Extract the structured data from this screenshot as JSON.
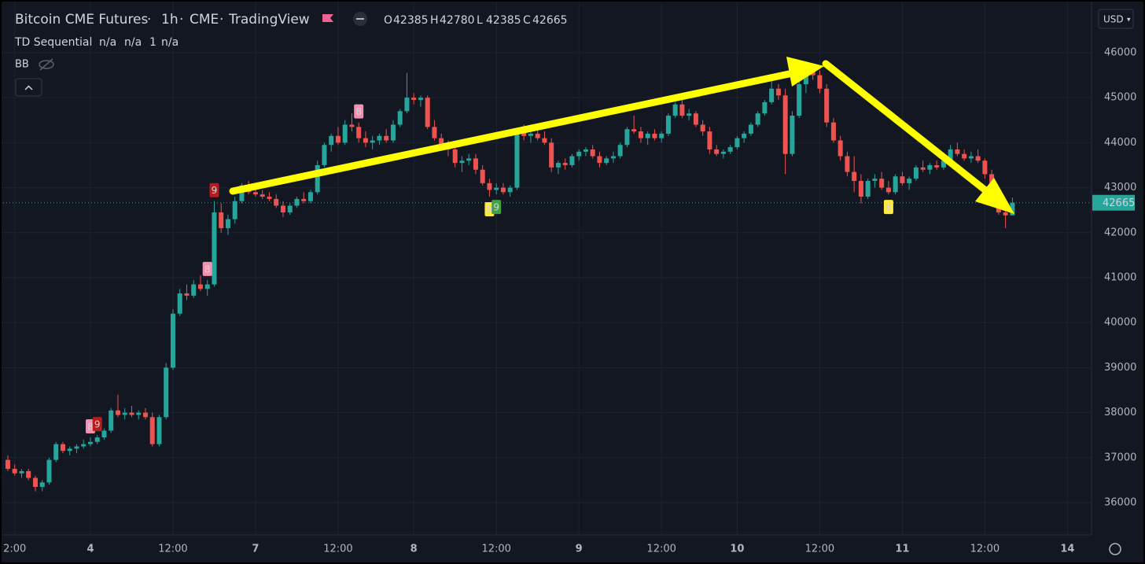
{
  "chart_data": {
    "type": "candlestick",
    "title": "Bitcoin CME Futures",
    "interval": "1h",
    "exchange": "CME",
    "source": "TradingView",
    "ohlc_legend": [
      {
        "label": "O",
        "value": 42385
      },
      {
        "label": "H",
        "value": 42780
      },
      {
        "label": "L",
        "value": 42385
      },
      {
        "label": "C",
        "value": 42665
      }
    ],
    "indicator": {
      "name": "TD Sequential",
      "values": [
        "n/a",
        "n/a",
        "1",
        "n/a"
      ]
    },
    "indicator2": "BB",
    "currency": "USD",
    "last_price": 42665,
    "up_color": "#26a69a",
    "down_color": "#ef5350",
    "ylim": [
      35283,
      47171
    ],
    "yticks": [
      36000,
      37000,
      38000,
      39000,
      40000,
      41000,
      42000,
      43000,
      44000,
      45000,
      46000
    ],
    "xlim": [
      -1.14,
      157.5
    ],
    "xticks": [
      {
        "value": 1,
        "label": "2:00"
      },
      {
        "value": 12,
        "label": "4"
      },
      {
        "value": 24,
        "label": "12:00"
      },
      {
        "value": 36,
        "label": "7"
      },
      {
        "value": 48,
        "label": "12:00"
      },
      {
        "value": 59,
        "label": "8"
      },
      {
        "value": 71,
        "label": "12:00"
      },
      {
        "value": 83,
        "label": "9"
      },
      {
        "value": 95,
        "label": "12:00"
      },
      {
        "value": 106,
        "label": "10"
      },
      {
        "value": 118,
        "label": "12:00"
      },
      {
        "value": 130,
        "label": "11"
      },
      {
        "value": 142,
        "label": "12:00"
      },
      {
        "value": 154,
        "label": "14"
      }
    ],
    "grid": true,
    "td_labels": [
      {
        "index": 12,
        "text": "8",
        "color": "#f48fb1",
        "position": "above"
      },
      {
        "index": 13,
        "text": "9",
        "color": "#b71c1c",
        "position": "above"
      },
      {
        "index": 29,
        "text": "8",
        "color": "#f48fb1",
        "position": "above"
      },
      {
        "index": 30,
        "text": "9",
        "color": "#b71c1c",
        "position": "above"
      },
      {
        "index": 51,
        "text": "8",
        "color": "#f48fb1",
        "position": "above"
      },
      {
        "index": 70,
        "text": "8",
        "color": "#ffeb3b",
        "position": "below"
      },
      {
        "index": 71,
        "text": "9",
        "color": "#43a047",
        "position": "below"
      },
      {
        "index": 128,
        "text": "8",
        "color": "#ffeb3b",
        "position": "below"
      }
    ],
    "ohlc": [
      [
        36950,
        37050,
        36700,
        36750
      ],
      [
        36750,
        36850,
        36600,
        36650
      ],
      [
        36650,
        36750,
        36550,
        36700
      ],
      [
        36700,
        36750,
        36500,
        36550
      ],
      [
        36550,
        36600,
        36250,
        36350
      ],
      [
        36350,
        36500,
        36250,
        36450
      ],
      [
        36450,
        37000,
        36400,
        36950
      ],
      [
        36950,
        37350,
        36900,
        37300
      ],
      [
        37300,
        37350,
        37100,
        37150
      ],
      [
        37150,
        37250,
        37050,
        37200
      ],
      [
        37200,
        37300,
        37100,
        37250
      ],
      [
        37250,
        37400,
        37200,
        37300
      ],
      [
        37300,
        37450,
        37250,
        37350
      ],
      [
        37350,
        37500,
        37300,
        37450
      ],
      [
        37450,
        37650,
        37400,
        37600
      ],
      [
        37600,
        38100,
        37550,
        38050
      ],
      [
        38050,
        38400,
        37900,
        37950
      ],
      [
        37950,
        38100,
        37850,
        38000
      ],
      [
        38000,
        38150,
        37900,
        37950
      ],
      [
        37950,
        38050,
        37850,
        38000
      ],
      [
        38000,
        38100,
        37850,
        37900
      ],
      [
        37900,
        38000,
        37250,
        37300
      ],
      [
        37300,
        37950,
        37250,
        37900
      ],
      [
        37900,
        39100,
        37850,
        39000
      ],
      [
        39000,
        40300,
        38950,
        40200
      ],
      [
        40200,
        40750,
        40150,
        40650
      ],
      [
        40650,
        40850,
        40500,
        40600
      ],
      [
        40600,
        40950,
        40550,
        40850
      ],
      [
        40850,
        41050,
        40700,
        40750
      ],
      [
        40750,
        40950,
        40600,
        40850
      ],
      [
        40850,
        42700,
        40800,
        42450
      ],
      [
        42450,
        42650,
        42000,
        42100
      ],
      [
        42100,
        42400,
        41950,
        42300
      ],
      [
        42300,
        42800,
        42200,
        42700
      ],
      [
        42700,
        43100,
        42650,
        43050
      ],
      [
        43050,
        43150,
        42850,
        42900
      ],
      [
        42900,
        43000,
        42800,
        42850
      ],
      [
        42850,
        42950,
        42750,
        42800
      ],
      [
        42800,
        42900,
        42700,
        42750
      ],
      [
        42750,
        42850,
        42550,
        42600
      ],
      [
        42600,
        42700,
        42350,
        42450
      ],
      [
        42450,
        42650,
        42400,
        42600
      ],
      [
        42600,
        42800,
        42550,
        42750
      ],
      [
        42750,
        42900,
        42650,
        42700
      ],
      [
        42700,
        42950,
        42650,
        42900
      ],
      [
        42900,
        43600,
        42850,
        43500
      ],
      [
        43500,
        44000,
        43450,
        43950
      ],
      [
        43950,
        44200,
        43800,
        44150
      ],
      [
        44150,
        44350,
        43950,
        44000
      ],
      [
        44000,
        44500,
        43950,
        44400
      ],
      [
        44400,
        44650,
        44250,
        44350
      ],
      [
        44350,
        44450,
        44000,
        44100
      ],
      [
        44100,
        44250,
        43900,
        44000
      ],
      [
        44000,
        44150,
        43850,
        44050
      ],
      [
        44050,
        44200,
        43950,
        44150
      ],
      [
        44150,
        44300,
        44000,
        44050
      ],
      [
        44050,
        44500,
        44000,
        44400
      ],
      [
        44400,
        44750,
        44350,
        44700
      ],
      [
        44700,
        45550,
        44650,
        45000
      ],
      [
        45000,
        45100,
        44850,
        44950
      ],
      [
        44950,
        45050,
        44800,
        45000
      ],
      [
        45000,
        45050,
        44300,
        44350
      ],
      [
        44350,
        44500,
        44050,
        44100
      ],
      [
        44100,
        44200,
        43850,
        43900
      ],
      [
        43900,
        44050,
        43700,
        43850
      ],
      [
        43850,
        43950,
        43450,
        43550
      ],
      [
        43550,
        43700,
        43350,
        43600
      ],
      [
        43600,
        43750,
        43500,
        43650
      ],
      [
        43650,
        43750,
        43300,
        43400
      ],
      [
        43400,
        43500,
        43050,
        43100
      ],
      [
        43100,
        43200,
        42800,
        42950
      ],
      [
        42950,
        43100,
        42850,
        43000
      ],
      [
        43000,
        43100,
        42850,
        42900
      ],
      [
        42900,
        43050,
        42800,
        43000
      ],
      [
        43000,
        44300,
        42950,
        44250
      ],
      [
        44250,
        44400,
        44050,
        44150
      ],
      [
        44150,
        44300,
        44000,
        44200
      ],
      [
        44200,
        44350,
        44050,
        44100
      ],
      [
        44100,
        44250,
        43950,
        44000
      ],
      [
        44000,
        44100,
        43350,
        43450
      ],
      [
        43450,
        43600,
        43300,
        43550
      ],
      [
        43550,
        43650,
        43400,
        43500
      ],
      [
        43500,
        43750,
        43450,
        43700
      ],
      [
        43700,
        43850,
        43600,
        43800
      ],
      [
        43800,
        43900,
        43700,
        43850
      ],
      [
        43850,
        43950,
        43650,
        43700
      ],
      [
        43700,
        43800,
        43450,
        43550
      ],
      [
        43550,
        43700,
        43500,
        43650
      ],
      [
        43650,
        43800,
        43550,
        43700
      ],
      [
        43700,
        44000,
        43650,
        43950
      ],
      [
        43950,
        44350,
        43900,
        44300
      ],
      [
        44300,
        44600,
        44200,
        44250
      ],
      [
        44250,
        44350,
        44000,
        44100
      ],
      [
        44100,
        44250,
        43950,
        44200
      ],
      [
        44200,
        44300,
        44050,
        44100
      ],
      [
        44100,
        44250,
        44000,
        44200
      ],
      [
        44200,
        44650,
        44150,
        44600
      ],
      [
        44600,
        44900,
        44550,
        44850
      ],
      [
        44850,
        44950,
        44550,
        44600
      ],
      [
        44600,
        44750,
        44500,
        44650
      ],
      [
        44650,
        44700,
        44350,
        44400
      ],
      [
        44400,
        44500,
        44150,
        44250
      ],
      [
        44250,
        44350,
        43750,
        43850
      ],
      [
        43850,
        43950,
        43700,
        43750
      ],
      [
        43750,
        43850,
        43650,
        43800
      ],
      [
        43800,
        43950,
        43750,
        43900
      ],
      [
        43900,
        44150,
        43850,
        44100
      ],
      [
        44100,
        44250,
        44000,
        44200
      ],
      [
        44200,
        44450,
        44150,
        44400
      ],
      [
        44400,
        44700,
        44350,
        44650
      ],
      [
        44650,
        44950,
        44600,
        44900
      ],
      [
        44900,
        45400,
        44850,
        45200
      ],
      [
        45200,
        45300,
        44950,
        45050
      ],
      [
        45050,
        45200,
        43300,
        43750
      ],
      [
        43750,
        44700,
        43700,
        44600
      ],
      [
        44600,
        45450,
        44550,
        45300
      ],
      [
        45300,
        45800,
        45100,
        45650
      ],
      [
        45650,
        45750,
        45400,
        45500
      ],
      [
        45500,
        45600,
        45100,
        45200
      ],
      [
        45200,
        45300,
        44350,
        44450
      ],
      [
        44450,
        44550,
        44000,
        44050
      ],
      [
        44050,
        44150,
        43600,
        43700
      ],
      [
        43700,
        43800,
        43250,
        43350
      ],
      [
        43350,
        43700,
        42900,
        43150
      ],
      [
        43150,
        43300,
        42650,
        42800
      ],
      [
        42800,
        43200,
        42750,
        43150
      ],
      [
        43150,
        43300,
        43000,
        43200
      ],
      [
        43200,
        43350,
        42950,
        43000
      ],
      [
        43000,
        43150,
        42850,
        42900
      ],
      [
        42900,
        43300,
        42850,
        43250
      ],
      [
        43250,
        43350,
        43050,
        43100
      ],
      [
        43100,
        43250,
        42950,
        43200
      ],
      [
        43200,
        43500,
        43150,
        43450
      ],
      [
        43450,
        43600,
        43350,
        43400
      ],
      [
        43400,
        43550,
        43300,
        43500
      ],
      [
        43500,
        43600,
        43400,
        43450
      ],
      [
        43450,
        43650,
        43400,
        43600
      ],
      [
        43600,
        43950,
        43550,
        43850
      ],
      [
        43850,
        44000,
        43700,
        43750
      ],
      [
        43750,
        43850,
        43600,
        43650
      ],
      [
        43650,
        43800,
        43550,
        43700
      ],
      [
        43700,
        43850,
        43550,
        43600
      ],
      [
        43600,
        43650,
        43200,
        43300
      ],
      [
        43300,
        43400,
        42600,
        42700
      ],
      [
        42700,
        42850,
        42400,
        42450
      ],
      [
        42450,
        42750,
        42100,
        42385
      ],
      [
        42385,
        42780,
        42385,
        42665
      ]
    ]
  }
}
